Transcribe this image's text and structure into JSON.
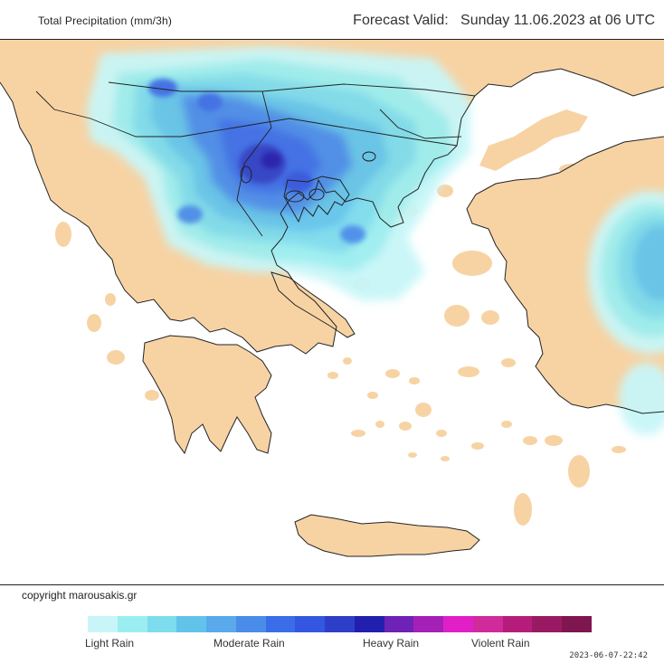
{
  "header": {
    "product": "Total Precipitation (mm/3h)",
    "forecast": "Forecast Valid:   Sunday 11.06.2023 at 06 UTC"
  },
  "footer": {
    "copyright": "copyright marousakis.gr",
    "timestamp": "2023-06-07-22:42"
  },
  "legend": {
    "labels": [
      "Light Rain",
      "Moderate Rain",
      "Heavy Rain",
      "Violent Rain"
    ],
    "colors": [
      "#c8f6f8",
      "#9beef0",
      "#7ddced",
      "#62c3ea",
      "#5aa9ea",
      "#4a8cea",
      "#3a6de8",
      "#3357e0",
      "#2d3fc8",
      "#231fae",
      "#6e22b6",
      "#a420b6",
      "#e020c6",
      "#d12a9a",
      "#b41e7a",
      "#991a63",
      "#7f164f"
    ]
  },
  "map": {
    "land_color": "#f7d3a4",
    "sea_color": "#ffffff",
    "border_color": "#222222"
  }
}
